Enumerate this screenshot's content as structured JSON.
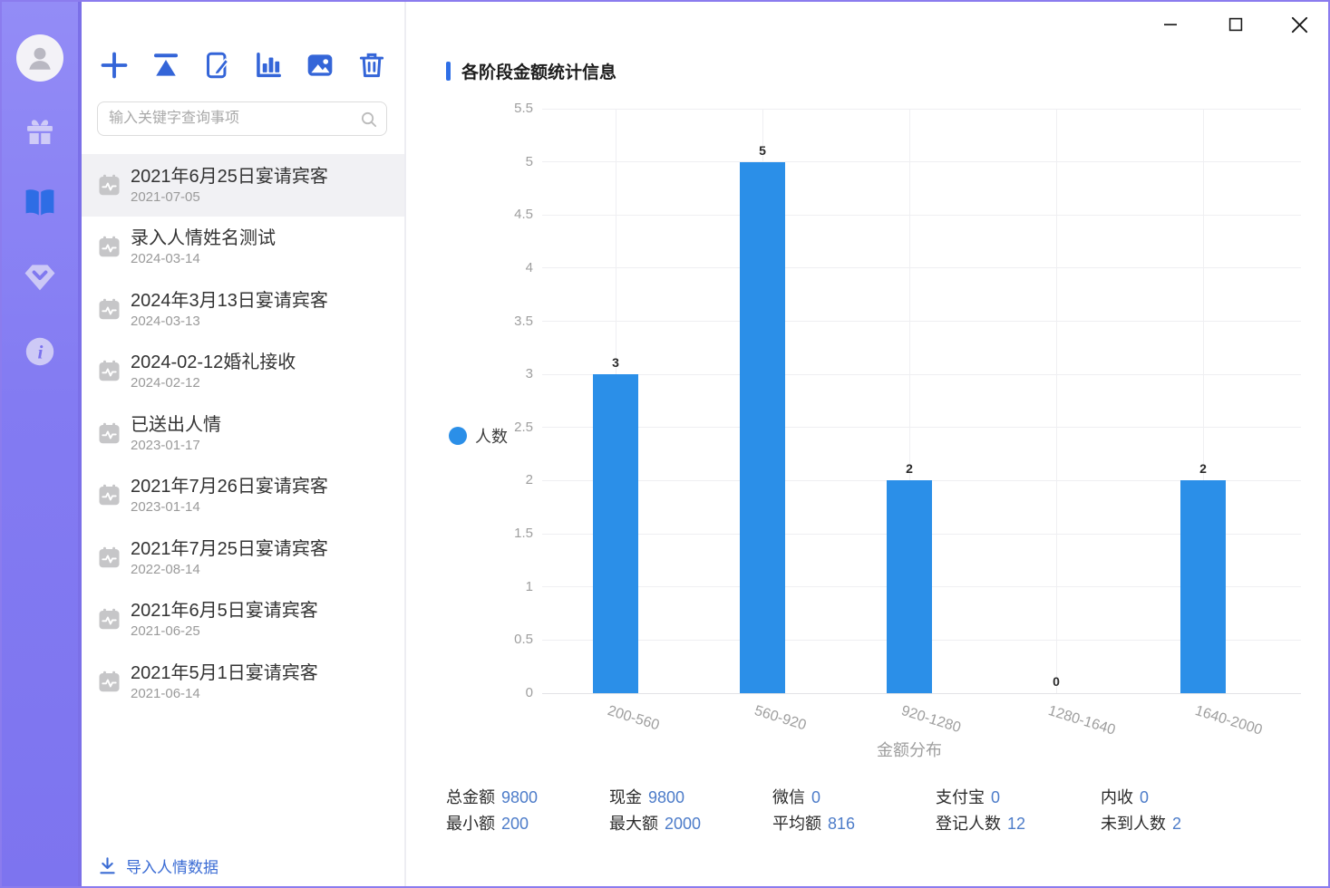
{
  "window_controls": {
    "buttons": [
      {
        "id": "minimize",
        "icon": "minimize-icon"
      },
      {
        "id": "maximize",
        "icon": "maximize-icon"
      },
      {
        "id": "close",
        "icon": "close-icon"
      }
    ]
  },
  "sidebar": {
    "items": [
      {
        "id": "profile",
        "icon": "user-avatar-icon",
        "active": false
      },
      {
        "id": "gifts",
        "icon": "gift-icon",
        "active": false
      },
      {
        "id": "records",
        "icon": "book-icon",
        "active": true
      },
      {
        "id": "membership",
        "icon": "gem-icon",
        "active": false
      },
      {
        "id": "about",
        "icon": "info-icon",
        "active": false
      }
    ]
  },
  "toolbar": {
    "buttons": [
      {
        "id": "add-event",
        "icon": "plus-icon"
      },
      {
        "id": "pin-top",
        "icon": "pin-top-icon"
      },
      {
        "id": "edit-event",
        "icon": "edit-note-icon"
      },
      {
        "id": "statistics",
        "icon": "bar-chart-icon"
      },
      {
        "id": "export-image",
        "icon": "image-icon"
      },
      {
        "id": "delete-event",
        "icon": "trash-icon"
      }
    ]
  },
  "search": {
    "placeholder": "输入关键字查询事项"
  },
  "event_list": [
    {
      "title": "2021年6月25日宴请宾客",
      "date": "2021-07-05",
      "selected": true
    },
    {
      "title": "录入人情姓名测试",
      "date": "2024-03-14",
      "selected": false
    },
    {
      "title": "2024年3月13日宴请宾客",
      "date": "2024-03-13",
      "selected": false
    },
    {
      "title": "2024-02-12婚礼接收",
      "date": "2024-02-12",
      "selected": false
    },
    {
      "title": "已送出人情",
      "date": "2023-01-17",
      "selected": false
    },
    {
      "title": "2021年7月26日宴请宾客",
      "date": "2023-01-14",
      "selected": false
    },
    {
      "title": "2021年7月25日宴请宾客",
      "date": "2022-08-14",
      "selected": false
    },
    {
      "title": "2021年6月5日宴请宾客",
      "date": "2021-06-25",
      "selected": false
    },
    {
      "title": "2021年5月1日宴请宾客",
      "date": "2021-06-14",
      "selected": false
    }
  ],
  "import_link": {
    "label": "导入人情数据"
  },
  "chart_data": {
    "type": "bar",
    "title": "各阶段金额统计信息",
    "categories": [
      "200-560",
      "560-920",
      "920-1280",
      "1280-1640",
      "1640-2000"
    ],
    "series": [
      {
        "name": "人数",
        "values": [
          3,
          5,
          2,
          0,
          2
        ]
      }
    ],
    "value_labels": [
      "3",
      "5",
      "2",
      "0",
      "2"
    ],
    "xlabel": "金额分布",
    "ylabel": "",
    "ylim": [
      0,
      5.5
    ],
    "ytick_step": 0.5,
    "grid": true,
    "legend_position": "left-middle",
    "bar_color": "#2b8fe8"
  },
  "stats": {
    "columns": [
      {
        "top": {
          "label": "总金额",
          "value": "9800"
        },
        "bottom": {
          "label": "最小额",
          "value": "200"
        }
      },
      {
        "top": {
          "label": "现金",
          "value": "9800"
        },
        "bottom": {
          "label": "最大额",
          "value": "2000"
        }
      },
      {
        "top": {
          "label": "微信",
          "value": "0"
        },
        "bottom": {
          "label": "平均额",
          "value": "816"
        }
      },
      {
        "top": {
          "label": "支付宝",
          "value": "0"
        },
        "bottom": {
          "label": "登记人数",
          "value": "12"
        }
      },
      {
        "top": {
          "label": "内收",
          "value": "0"
        },
        "bottom": {
          "label": "未到人数",
          "value": "2"
        }
      }
    ]
  },
  "colors": {
    "accent": "#3465d8",
    "bar": "#2b8fe8",
    "value_text": "#4d7cc9",
    "sidebar": "#837bf2",
    "window_border": "#8b7cee",
    "link": "#3b6cd4"
  }
}
